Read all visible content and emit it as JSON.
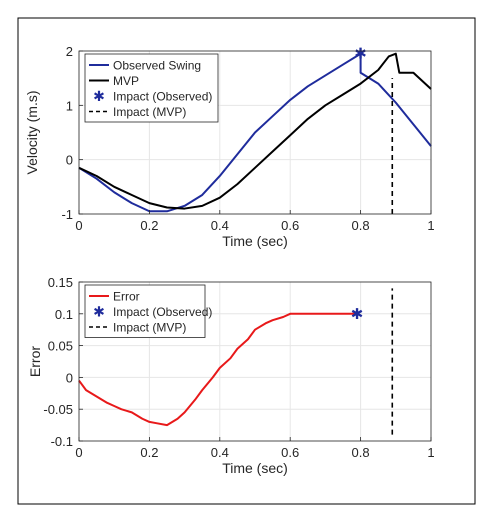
{
  "chart_data": [
    {
      "type": "line",
      "title": "",
      "xlabel": "Time (sec)",
      "ylabel": "Velocity (m.s)",
      "xlim": [
        0,
        1
      ],
      "ylim": [
        -1,
        2
      ],
      "xticks": [
        0,
        0.2,
        0.4,
        0.6,
        0.8,
        1
      ],
      "xtick_labels": [
        "0",
        "0.2",
        "0.4",
        "0.6",
        "0.8",
        "1"
      ],
      "yticks": [
        -1,
        0,
        1,
        2
      ],
      "ytick_labels": [
        "-1",
        "0",
        "1",
        "2"
      ],
      "grid": true,
      "legend_position": "top-left",
      "legend": [
        "Observed Swing",
        "MVP",
        "Impact (Observed)",
        "Impact (MVP)"
      ],
      "series": [
        {
          "name": "Observed Swing",
          "color": "#1f2c9c",
          "x": [
            0,
            0.05,
            0.1,
            0.15,
            0.2,
            0.25,
            0.3,
            0.35,
            0.4,
            0.45,
            0.5,
            0.55,
            0.6,
            0.65,
            0.7,
            0.75,
            0.8,
            0.8,
            0.85,
            0.9,
            0.95,
            1.0
          ],
          "y": [
            -0.15,
            -0.35,
            -0.6,
            -0.8,
            -0.95,
            -0.95,
            -0.85,
            -0.65,
            -0.3,
            0.1,
            0.5,
            0.8,
            1.1,
            1.35,
            1.55,
            1.75,
            1.95,
            1.6,
            1.4,
            1.05,
            0.65,
            0.25
          ]
        },
        {
          "name": "MVP",
          "color": "#000000",
          "x": [
            0,
            0.05,
            0.1,
            0.15,
            0.2,
            0.25,
            0.3,
            0.35,
            0.4,
            0.45,
            0.5,
            0.55,
            0.6,
            0.65,
            0.7,
            0.75,
            0.8,
            0.85,
            0.88,
            0.9,
            0.91,
            0.95,
            1.0
          ],
          "y": [
            -0.15,
            -0.3,
            -0.5,
            -0.65,
            -0.8,
            -0.88,
            -0.9,
            -0.85,
            -0.7,
            -0.45,
            -0.15,
            0.15,
            0.45,
            0.75,
            1.0,
            1.2,
            1.4,
            1.65,
            1.9,
            1.95,
            1.6,
            1.6,
            1.3
          ]
        }
      ],
      "impact_observed": {
        "x": 0.8,
        "y": 1.95,
        "color": "#1f2c9c"
      },
      "impact_mvp": {
        "x": 0.89,
        "y_from": -1,
        "y_to": 1.5,
        "color": "#000000"
      }
    },
    {
      "type": "line",
      "title": "",
      "xlabel": "Time (sec)",
      "ylabel": "Error",
      "xlim": [
        0,
        1
      ],
      "ylim": [
        -0.1,
        0.15
      ],
      "xticks": [
        0,
        0.2,
        0.4,
        0.6,
        0.8,
        1
      ],
      "xtick_labels": [
        "0",
        "0.2",
        "0.4",
        "0.6",
        "0.8",
        "1"
      ],
      "yticks": [
        -0.1,
        -0.05,
        0,
        0.05,
        0.1,
        0.15
      ],
      "ytick_labels": [
        "-0.1",
        "-0.05",
        "0",
        "0.05",
        "0.1",
        "0.15"
      ],
      "grid": true,
      "legend_position": "top-left",
      "legend": [
        "Error",
        "Impact (Observed)",
        "Impact (MVP)"
      ],
      "series": [
        {
          "name": "Error",
          "color": "#e8191a",
          "x": [
            0,
            0.02,
            0.05,
            0.08,
            0.1,
            0.12,
            0.15,
            0.18,
            0.2,
            0.22,
            0.25,
            0.28,
            0.3,
            0.33,
            0.35,
            0.38,
            0.4,
            0.43,
            0.45,
            0.48,
            0.5,
            0.53,
            0.55,
            0.58,
            0.6,
            0.65,
            0.7,
            0.75,
            0.79
          ],
          "y": [
            -0.005,
            -0.02,
            -0.03,
            -0.04,
            -0.045,
            -0.05,
            -0.055,
            -0.065,
            -0.07,
            -0.072,
            -0.075,
            -0.065,
            -0.055,
            -0.035,
            -0.02,
            0,
            0.015,
            0.03,
            0.045,
            0.06,
            0.075,
            0.085,
            0.09,
            0.095,
            0.1,
            0.1,
            0.1,
            0.1,
            0.1
          ]
        }
      ],
      "impact_observed": {
        "x": 0.79,
        "y": 0.1,
        "color": "#1f2c9c"
      },
      "impact_mvp": {
        "x": 0.89,
        "y_from": -0.09,
        "y_to": 0.14,
        "color": "#000000"
      }
    }
  ]
}
